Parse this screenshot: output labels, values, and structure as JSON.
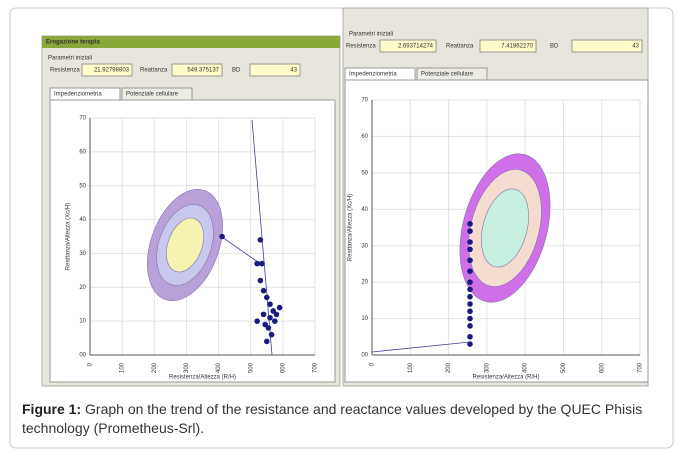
{
  "panels": [
    {
      "window_title": "Erogazione terapia",
      "group_title": "Parametri iniziali",
      "fields": [
        {
          "label": "Resistenza",
          "value": "21.92798803"
        },
        {
          "label": "Reattanza",
          "value": "549.375137"
        },
        {
          "label": "BD",
          "value": "43"
        }
      ],
      "tabs": [
        "Impedenziometria",
        "Potenziale cellulare"
      ],
      "chart": {
        "type": "scatter",
        "xlabel": "Resistenza/Altezza (R/H)",
        "ylabel": "Reattanza/Altezza (Xc/H)",
        "xlim": [
          0,
          700
        ],
        "ylim": [
          0,
          70
        ],
        "xticks": [
          0,
          100,
          200,
          300,
          400,
          500,
          600,
          700
        ],
        "yticks": [
          {
            "value": 0,
            "label": "00"
          },
          10,
          20,
          30,
          40,
          50,
          60,
          70
        ],
        "grid": true,
        "series": [
          {
            "color": "#1a1a80",
            "x": [
              411,
              530,
              520,
              535,
              530,
              540,
              550,
              560,
              540,
              520,
              560,
              570,
              580,
              545,
              555,
              575,
              590,
              565,
              550
            ],
            "y": [
              35,
              34,
              27,
              27,
              22,
              19,
              17,
              15,
              12,
              10,
              11,
              13,
              12,
              9,
              8,
              10,
              14,
              6,
              4
            ]
          }
        ]
      }
    },
    {
      "group_title": "Parametri iniziali",
      "fields": [
        {
          "label": "Resistenza",
          "value": "2.693714274"
        },
        {
          "label": "Reattanza",
          "value": "7.41862270"
        },
        {
          "label": "BD",
          "value": "43"
        }
      ],
      "tabs": [
        "Impedenziometria",
        "Potenziale cellulare"
      ],
      "chart": {
        "type": "scatter",
        "xlabel": "Resistenza/Altezza (R/H)",
        "ylabel": "Reattanza/Altezza (Xc/H)",
        "xlim": [
          0,
          700
        ],
        "ylim": [
          0,
          70
        ],
        "xticks": [
          0,
          100,
          200,
          300,
          400,
          500,
          600,
          700
        ],
        "yticks": [
          {
            "value": 0,
            "label": "00"
          },
          10,
          20,
          30,
          40,
          50,
          60,
          70
        ],
        "grid": true,
        "series": [
          {
            "color": "#1a1a80",
            "x": [
              256,
              256,
              256,
              256,
              256,
              256,
              256,
              256,
              256,
              256,
              256,
              256,
              256,
              256,
              256
            ],
            "y": [
              3,
              5,
              8,
              10,
              12,
              14,
              16,
              18,
              20,
              23,
              26,
              29,
              31,
              34,
              36
            ]
          }
        ]
      }
    }
  ],
  "caption": {
    "label": "Figure 1:",
    "text": "Graph on the trend of the resistance and reactance values developed by the QUEC Phisis technology (Prometheus-Srl)."
  }
}
